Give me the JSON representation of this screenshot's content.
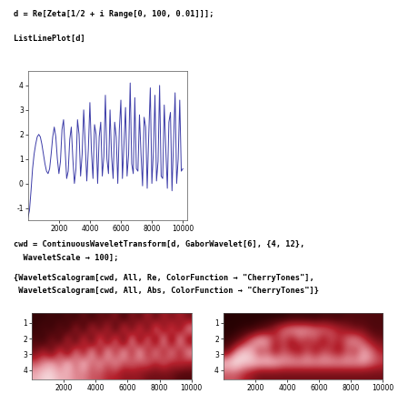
{
  "notebook": {
    "inputs": [
      [
        "d = Re[Zeta[1/2 + i Range[0, 100, 0.01]]];"
      ],
      [
        "ListLinePlot[d]"
      ],
      [
        "cwd = ContinuousWaveletTransform[d, GaborWavelet[6], {4, 12},",
        "  WaveletScale → 100];"
      ],
      [
        "{WaveletScalogram[cwd, All, Re, ColorFunction → \"CherryTones\"],",
        " WaveletScalogram[cwd, All, Abs, ColorFunction → \"CherryTones\"]}"
      ]
    ]
  },
  "chart_data": [
    {
      "type": "line",
      "color": "#3c3ca8",
      "x": [
        0,
        100,
        200,
        300,
        400,
        500,
        600,
        700,
        800,
        900,
        1000,
        1100,
        1200,
        1300,
        1400,
        1500,
        1600,
        1700,
        1800,
        1900,
        2000,
        2100,
        2200,
        2300,
        2400,
        2500,
        2600,
        2700,
        2800,
        2900,
        3000,
        3100,
        3200,
        3300,
        3400,
        3500,
        3600,
        3700,
        3800,
        3900,
        4000,
        4100,
        4200,
        4300,
        4400,
        4500,
        4600,
        4700,
        4800,
        4900,
        5000,
        5100,
        5200,
        5300,
        5400,
        5500,
        5600,
        5700,
        5800,
        5900,
        6000,
        6100,
        6200,
        6300,
        6400,
        6500,
        6600,
        6700,
        6800,
        6900,
        7000,
        7100,
        7200,
        7300,
        7400,
        7500,
        7600,
        7700,
        7800,
        7900,
        8000,
        8100,
        8200,
        8300,
        8400,
        8500,
        8600,
        8700,
        8800,
        8900,
        9000,
        9100,
        9200,
        9300,
        9400,
        9500,
        9600,
        9700,
        9800,
        9900,
        10000
      ],
      "values": [
        -1.4,
        -1.1,
        -0.3,
        0.6,
        1.2,
        1.6,
        1.9,
        2.0,
        1.9,
        1.6,
        1.2,
        0.8,
        0.5,
        0.4,
        0.6,
        1.2,
        1.9,
        2.3,
        1.9,
        1.0,
        0.4,
        0.9,
        2.2,
        2.6,
        1.4,
        0.2,
        0.5,
        1.8,
        2.3,
        1.0,
        0.0,
        0.6,
        2.6,
        2.0,
        0.3,
        1.2,
        3.0,
        1.6,
        0.1,
        1.4,
        3.3,
        1.3,
        0.2,
        2.4,
        2.0,
        0.0,
        1.9,
        2.5,
        0.3,
        1.1,
        3.6,
        1.0,
        0.4,
        3.0,
        1.1,
        0.2,
        2.5,
        1.9,
        0.0,
        2.2,
        3.4,
        0.2,
        1.6,
        3.1,
        0.3,
        1.2,
        4.1,
        0.8,
        0.4,
        3.5,
        0.6,
        0.5,
        2.8,
        1.2,
        -0.1,
        2.7,
        2.3,
        -0.2,
        2.0,
        3.9,
        0.0,
        1.3,
        3.6,
        0.1,
        0.9,
        4.0,
        0.3,
        0.2,
        3.2,
        1.4,
        -0.2,
        2.5,
        2.9,
        -0.3,
        1.7,
        3.7,
        0.0,
        1.0,
        3.4,
        0.5,
        0.6
      ],
      "xlim": [
        0,
        10300
      ],
      "ylim": [
        -1.5,
        4.6
      ],
      "xticks": [
        2000,
        4000,
        6000,
        8000,
        10000
      ],
      "yticks": [
        -1,
        0,
        1,
        2,
        3,
        4
      ],
      "grid": false
    },
    {
      "type": "heatmap",
      "color_function": "CherryTones",
      "xlim": [
        0,
        10000
      ],
      "ylim": [
        4.6,
        0.4
      ],
      "xticks": [
        2000,
        4000,
        6000,
        8000,
        10000
      ],
      "yticks": [
        1,
        2,
        3,
        4
      ],
      "color_range": [
        0,
        1
      ],
      "cells": [
        [
          0.1,
          0.1,
          0.15,
          0.1,
          0.2,
          0.1,
          0.3,
          0.1,
          0.3,
          0.2,
          0.4,
          0.1,
          0.4,
          0.2,
          0.5,
          0.2,
          0.5,
          0.3,
          0.5,
          0.3
        ],
        [
          0.1,
          0.2,
          0.1,
          0.3,
          0.1,
          0.5,
          0.1,
          0.6,
          0.2,
          0.6,
          0.1,
          0.7,
          0.2,
          0.7,
          0.2,
          0.8,
          0.3,
          0.7,
          0.3,
          0.8
        ],
        [
          0.2,
          0.1,
          0.4,
          0.1,
          0.6,
          0.1,
          0.7,
          0.1,
          0.8,
          0.2,
          0.8,
          0.1,
          0.9,
          0.2,
          0.8,
          0.2,
          0.9,
          0.2,
          0.9,
          0.3
        ],
        [
          0.3,
          0.5,
          0.2,
          0.7,
          0.2,
          0.8,
          0.3,
          0.9,
          0.3,
          0.9,
          0.4,
          0.9,
          0.4,
          0.9,
          0.4,
          0.8,
          0.4,
          0.8,
          0.4,
          0.8
        ],
        [
          0.6,
          0.7,
          0.8,
          0.6,
          0.9,
          0.6,
          0.9,
          0.6,
          0.8,
          0.6,
          0.8,
          0.6,
          0.7,
          0.6,
          0.7,
          0.5,
          0.7,
          0.5,
          0.6,
          0.5
        ],
        [
          0.8,
          0.9,
          0.9,
          0.8,
          0.8,
          0.7,
          0.7,
          0.6,
          0.6,
          0.5,
          0.5,
          0.4,
          0.4,
          0.4,
          0.3,
          0.3,
          0.3,
          0.3,
          0.2,
          0.2
        ]
      ]
    },
    {
      "type": "heatmap",
      "color_function": "CherryTones",
      "xlim": [
        0,
        10000
      ],
      "ylim": [
        4.6,
        0.4
      ],
      "xticks": [
        2000,
        4000,
        6000,
        8000,
        10000
      ],
      "yticks": [
        1,
        2,
        3,
        4
      ],
      "color_range": [
        0,
        1
      ],
      "cells": [
        [
          0.05,
          0.05,
          0.05,
          0.05,
          0.05,
          0.05,
          0.05,
          0.05,
          0.1,
          0.1,
          0.1,
          0.1,
          0.15,
          0.15,
          0.15,
          0.2,
          0.2,
          0.2,
          0.2,
          0.2
        ],
        [
          0.05,
          0.05,
          0.1,
          0.1,
          0.2,
          0.3,
          0.5,
          0.7,
          0.8,
          0.8,
          0.8,
          0.7,
          0.7,
          0.6,
          0.5,
          0.4,
          0.3,
          0.3,
          0.2,
          0.2
        ],
        [
          0.1,
          0.2,
          0.4,
          0.7,
          0.9,
          0.8,
          0.5,
          0.6,
          0.4,
          0.6,
          0.5,
          0.6,
          0.4,
          0.6,
          0.5,
          0.7,
          0.8,
          0.6,
          0.4,
          0.3
        ],
        [
          0.3,
          0.7,
          0.9,
          0.8,
          0.5,
          0.6,
          0.4,
          0.6,
          0.5,
          0.4,
          0.6,
          0.4,
          0.6,
          0.5,
          0.4,
          0.6,
          0.5,
          0.8,
          0.7,
          0.5
        ],
        [
          0.9,
          1.0,
          0.9,
          0.9,
          0.9,
          0.9,
          0.9,
          0.8,
          0.8,
          0.8,
          0.8,
          0.8,
          0.8,
          0.8,
          0.8,
          0.8,
          0.8,
          0.8,
          0.7,
          0.6
        ],
        [
          0.6,
          0.6,
          0.5,
          0.4,
          0.3,
          0.3,
          0.3,
          0.3,
          0.3,
          0.3,
          0.3,
          0.3,
          0.3,
          0.3,
          0.3,
          0.3,
          0.3,
          0.3,
          0.3,
          0.3
        ]
      ]
    }
  ]
}
